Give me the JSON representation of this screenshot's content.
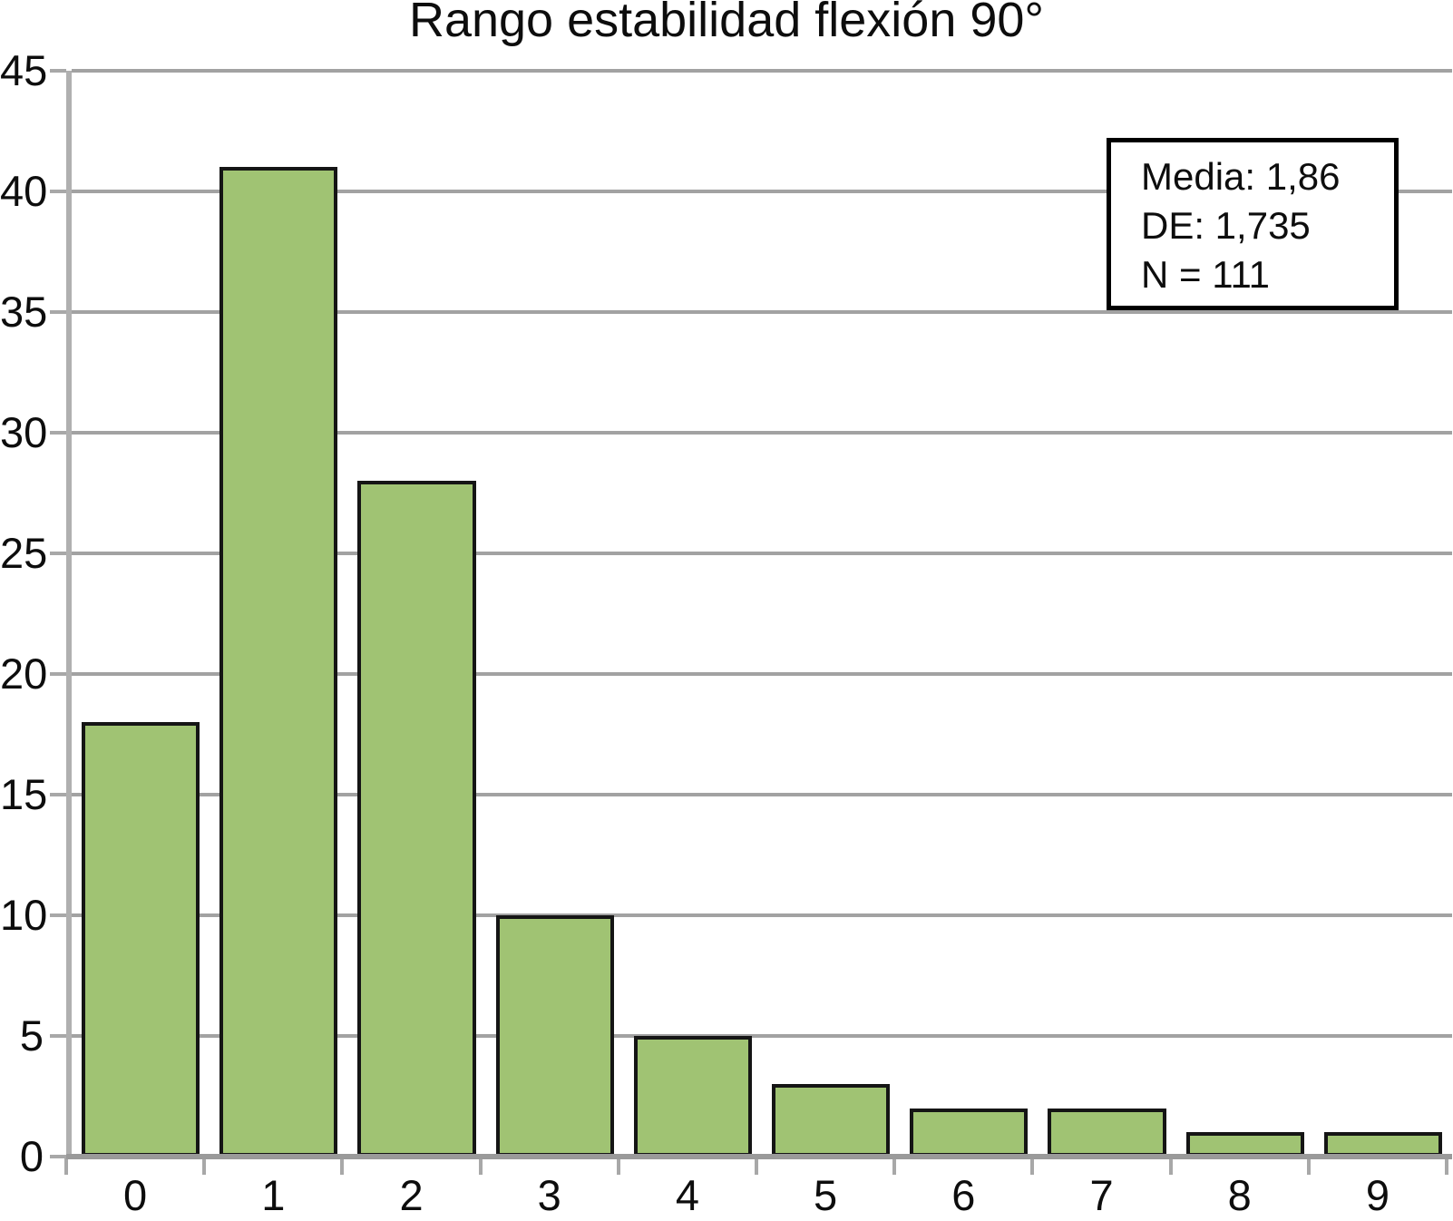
{
  "chart_data": {
    "type": "bar",
    "title": "Rango estabilidad flexión 90°",
    "categories": [
      "0",
      "1",
      "2",
      "3",
      "4",
      "5",
      "6",
      "7",
      "8",
      "9"
    ],
    "values": [
      18,
      41,
      28,
      10,
      5,
      3,
      2,
      2,
      1,
      1
    ],
    "xlabel": "",
    "ylabel": "",
    "ylim": [
      0,
      45
    ],
    "yticks": [
      0,
      5,
      10,
      15,
      20,
      25,
      30,
      35,
      40,
      45
    ],
    "grid": true,
    "legend_position": "top-right",
    "bar_color": "#a0c373",
    "bar_border_color": "#151515",
    "grid_color": "#a2a2a2",
    "axis_color": "#b0b0b0",
    "stats": {
      "media": "1,86",
      "de": "1,735",
      "n": "111"
    }
  },
  "stats_box": {
    "lines": [
      "Media: 1,86",
      "DE: 1,735",
      "N = 111"
    ]
  }
}
